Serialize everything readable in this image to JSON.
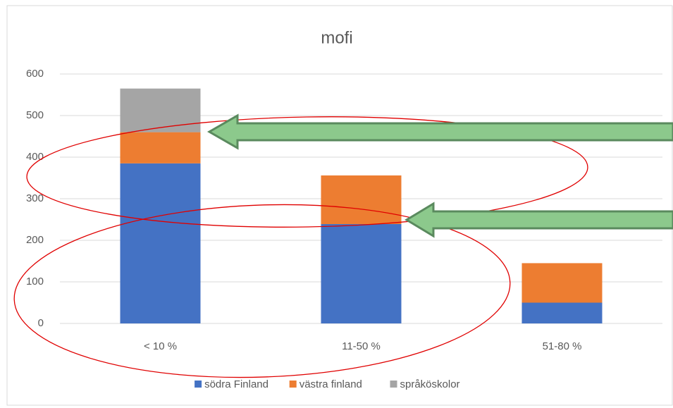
{
  "chart_data": {
    "type": "stacked_bar",
    "title": "mofi",
    "categories": [
      "< 10 %",
      "11-50 %",
      "51-80 %"
    ],
    "series": [
      {
        "name": "södra Finland",
        "color": "#4472c4",
        "values": [
          385,
          239,
          50
        ]
      },
      {
        "name": "västra finland",
        "color": "#ed7d31",
        "values": [
          75,
          117,
          95
        ]
      },
      {
        "name": "språköskolor",
        "color": "#a5a5a5",
        "values": [
          105,
          null,
          null
        ]
      }
    ],
    "ylim": [
      0,
      600
    ],
    "yticks": [
      0,
      100,
      200,
      300,
      400,
      500,
      600
    ],
    "grid": true,
    "legend": "bottom"
  }
}
